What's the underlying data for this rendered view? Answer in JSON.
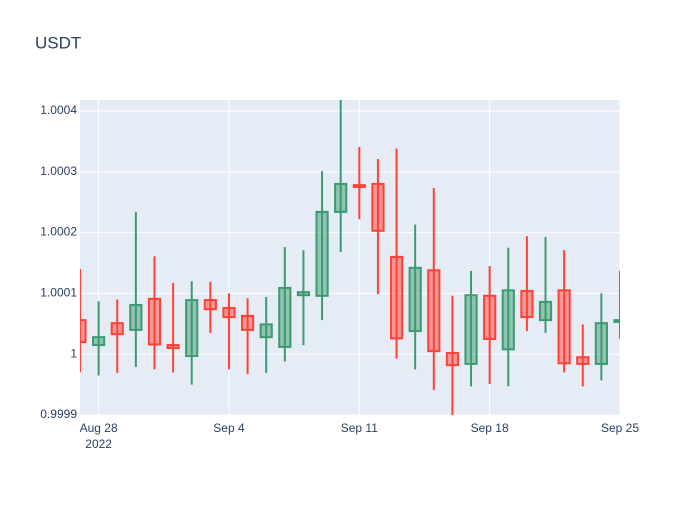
{
  "chart_data": {
    "type": "candlestick",
    "title": "USDT",
    "x": [
      "2022-08-27",
      "2022-08-28",
      "2022-08-29",
      "2022-08-30",
      "2022-08-31",
      "2022-09-01",
      "2022-09-02",
      "2022-09-03",
      "2022-09-04",
      "2022-09-05",
      "2022-09-06",
      "2022-09-07",
      "2022-09-08",
      "2022-09-09",
      "2022-09-10",
      "2022-09-11",
      "2022-09-12",
      "2022-09-13",
      "2022-09-14",
      "2022-09-15",
      "2022-09-16",
      "2022-09-17",
      "2022-09-18",
      "2022-09-19",
      "2022-09-20",
      "2022-09-21",
      "2022-09-22",
      "2022-09-23",
      "2022-09-24",
      "2022-09-25"
    ],
    "open": [
      1.000056,
      1.000015,
      1.000051,
      1.00004,
      1.000091,
      1.000015,
      0.999997,
      1.000089,
      1.000076,
      1.000063,
      1.000028,
      1.000012,
      1.000097,
      1.000096,
      1.000234,
      1.000278,
      1.00028,
      1.00016,
      1.000038,
      1.000138,
      1.000002,
      0.999984,
      1.000096,
      1.000008,
      1.000104,
      1.000056,
      1.000105,
      0.999995,
      0.999984,
      1.000053
    ],
    "high": [
      1.00014,
      1.000087,
      1.00009,
      1.000234,
      1.000161,
      1.000117,
      1.00012,
      1.000119,
      1.0001,
      1.000092,
      1.000094,
      1.000176,
      1.000171,
      1.000301,
      1.000418,
      1.000341,
      1.000321,
      1.000338,
      1.000213,
      1.000273,
      1.000096,
      1.000137,
      1.000145,
      1.000175,
      1.000194,
      1.000193,
      1.000171,
      1.000049,
      1.0001,
      1.000137
    ],
    "low": [
      0.99997,
      0.999965,
      0.999969,
      0.999979,
      0.999975,
      0.99997,
      0.99995,
      1.000035,
      0.999975,
      0.999967,
      0.999969,
      0.999988,
      1.000015,
      1.000056,
      1.000168,
      1.000222,
      1.000099,
      0.999993,
      0.999975,
      0.999941,
      0.999891,
      0.999947,
      0.999951,
      0.999947,
      1.000038,
      1.000035,
      0.99997,
      0.999947,
      0.999957,
      1.000025
    ],
    "close": [
      1.00002,
      1.000028,
      1.000033,
      1.000081,
      1.000016,
      1.00001,
      1.000089,
      1.000074,
      1.000061,
      1.00004,
      1.000049,
      1.000109,
      1.000102,
      1.000234,
      1.00028,
      1.000275,
      1.000203,
      1.000026,
      1.000142,
      1.000005,
      0.999982,
      1.000097,
      1.000025,
      1.000105,
      1.000061,
      1.000086,
      0.999985,
      0.999984,
      1.000051,
      1.000056
    ],
    "increasing_color": "#3d9970",
    "decreasing_color": "#ff4136",
    "xlim": [
      "2022-08-27",
      "2022-09-25"
    ],
    "xticks": [
      {
        "value": "2022-08-28",
        "label": "Aug 28"
      },
      {
        "value": "2022-09-04",
        "label": "Sep 4"
      },
      {
        "value": "2022-09-11",
        "label": "Sep 11"
      },
      {
        "value": "2022-09-18",
        "label": "Sep 18"
      },
      {
        "value": "2022-09-25",
        "label": "Sep 25"
      }
    ],
    "x_tick_year": "2022",
    "ylim": [
      0.9999,
      1.000418
    ],
    "yticks": [
      0.9999,
      1,
      1.0001,
      1.0002,
      1.0003,
      1.0004
    ],
    "grid": true
  }
}
